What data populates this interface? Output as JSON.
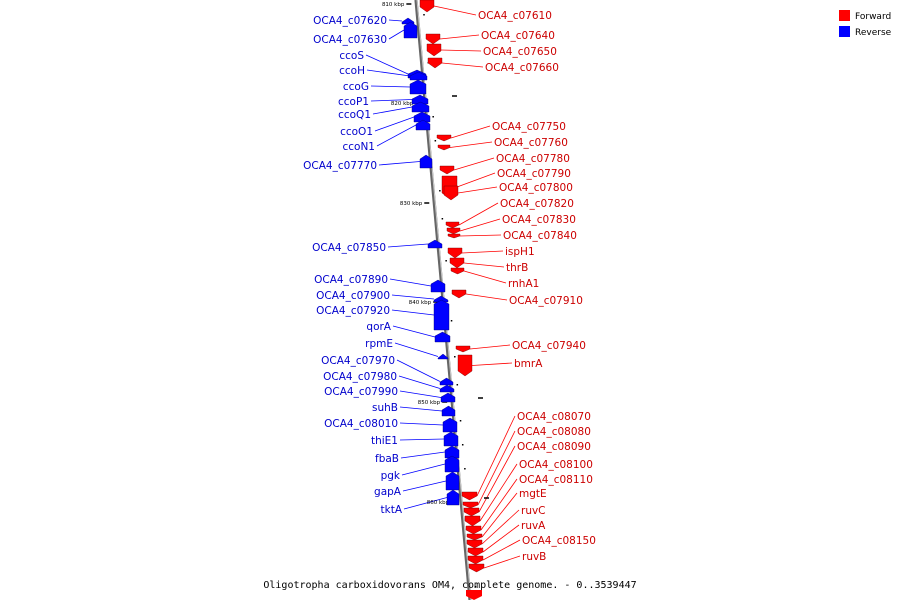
{
  "caption": "Oligotropha carboxidovorans OM4, complete genome. - 0..3539447",
  "legend": [
    {
      "label": "Forward",
      "color": "#ff0000"
    },
    {
      "label": "Reverse",
      "color": "#0000ff"
    }
  ],
  "colors": {
    "forward": "#ff0000",
    "reverse": "#0000ff",
    "label_forward": "#cc0000",
    "label_reverse": "#0000cc",
    "axis": "#999999"
  },
  "axis_ticks": [
    "810 kbp",
    "820 kbp",
    "830 kbp",
    "840 kbp",
    "850 kbp",
    "860 kbp"
  ],
  "reverse_genes": [
    "OCA4_c07620",
    "OCA4_c07630",
    "ccoS",
    "ccoH",
    "ccoG",
    "ccoP1",
    "ccoQ1",
    "ccoO1",
    "ccoN1",
    "OCA4_c07770",
    "OCA4_c07850",
    "OCA4_c07890",
    "OCA4_c07900",
    "OCA4_c07920",
    "qorA",
    "rpmE",
    "OCA4_c07970",
    "OCA4_c07980",
    "OCA4_c07990",
    "suhB",
    "OCA4_c08010",
    "thiE1",
    "fbaB",
    "pgk",
    "gapA",
    "tktA"
  ],
  "forward_genes": [
    "OCA4_c07610",
    "OCA4_c07640",
    "OCA4_c07650",
    "OCA4_c07660",
    "OCA4_c07750",
    "OCA4_c07760",
    "OCA4_c07780",
    "OCA4_c07790",
    "OCA4_c07800",
    "OCA4_c07820",
    "OCA4_c07830",
    "OCA4_c07840",
    "ispH1",
    "thrB",
    "rnhA1",
    "OCA4_c07910",
    "OCA4_c07940",
    "bmrA",
    "OCA4_c08070",
    "OCA4_c08080",
    "OCA4_c08090",
    "OCA4_c08100",
    "OCA4_c08110",
    "mgtE",
    "ruvC",
    "ruvA",
    "OCA4_c08150",
    "ruvB"
  ]
}
